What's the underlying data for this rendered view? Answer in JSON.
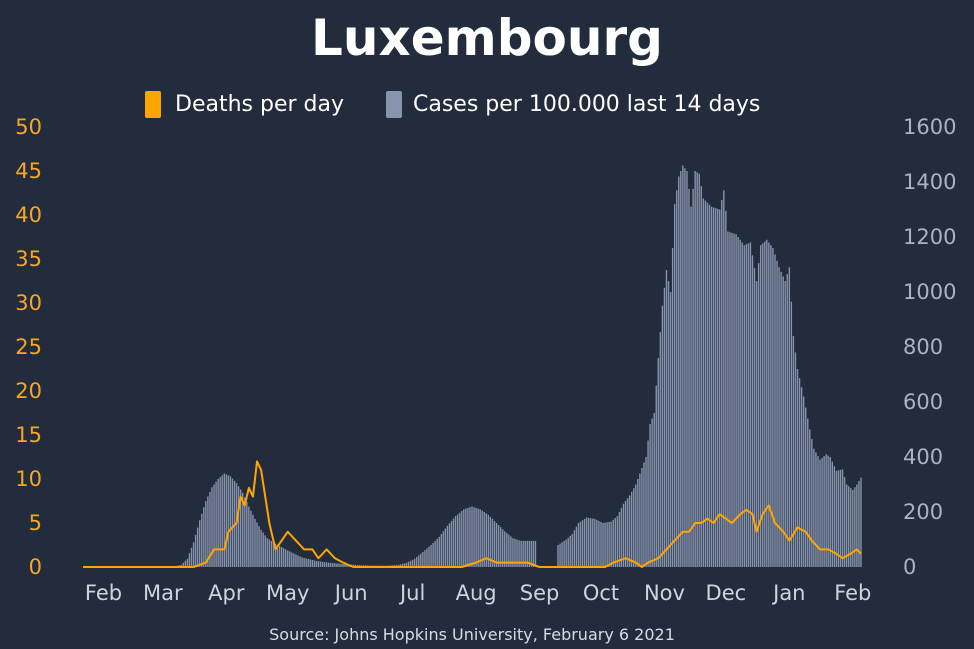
{
  "chart_data": {
    "type": "bar+line",
    "title": "Luxembourg",
    "source": "Source: Johns Hopkins University, February 6 2021",
    "legend": [
      {
        "label": "Deaths per day",
        "color": "#ffa500",
        "axis": "left"
      },
      {
        "label": "Cases per 100.000 last 14 days",
        "color": "#8794ad",
        "axis": "right"
      }
    ],
    "legend_position": "top-center",
    "x_tick_labels": [
      "Feb",
      "Mar",
      "Apr",
      "May",
      "Jun",
      "Jul",
      "Aug",
      "Sep",
      "Oct",
      "Nov",
      "Dec",
      "Jan",
      "Feb"
    ],
    "y_left": {
      "ticks": [
        "0",
        "5",
        "10",
        "15",
        "20",
        "25",
        "30",
        "35",
        "40",
        "45",
        "50"
      ],
      "range": [
        0,
        50
      ]
    },
    "y_right": {
      "ticks": [
        "0",
        "200",
        "400",
        "600",
        "800",
        "1000",
        "1200",
        "1400",
        "1600"
      ],
      "range": [
        0,
        1600
      ]
    },
    "x_range": [
      "2020-01-22",
      "2021-02-05"
    ],
    "series": [
      {
        "name": "Cases per 100.000 last 14 days",
        "kind": "bar",
        "axis": "right",
        "points": [
          [
            "2020-03-05",
            0
          ],
          [
            "2020-03-10",
            8
          ],
          [
            "2020-03-13",
            30
          ],
          [
            "2020-03-16",
            90
          ],
          [
            "2020-03-19",
            170
          ],
          [
            "2020-03-22",
            240
          ],
          [
            "2020-03-25",
            290
          ],
          [
            "2020-03-28",
            320
          ],
          [
            "2020-03-31",
            340
          ],
          [
            "2020-04-03",
            330
          ],
          [
            "2020-04-06",
            305
          ],
          [
            "2020-04-09",
            270
          ],
          [
            "2020-04-12",
            220
          ],
          [
            "2020-04-15",
            175
          ],
          [
            "2020-04-18",
            135
          ],
          [
            "2020-04-21",
            105
          ],
          [
            "2020-04-25",
            85
          ],
          [
            "2020-05-01",
            60
          ],
          [
            "2020-05-08",
            35
          ],
          [
            "2020-05-15",
            22
          ],
          [
            "2020-05-22",
            15
          ],
          [
            "2020-05-29",
            10
          ],
          [
            "2020-06-05",
            7
          ],
          [
            "2020-06-12",
            5
          ],
          [
            "2020-06-19",
            5
          ],
          [
            "2020-06-24",
            8
          ],
          [
            "2020-06-28",
            15
          ],
          [
            "2020-07-02",
            30
          ],
          [
            "2020-07-06",
            55
          ],
          [
            "2020-07-10",
            80
          ],
          [
            "2020-07-14",
            110
          ],
          [
            "2020-07-18",
            150
          ],
          [
            "2020-07-22",
            185
          ],
          [
            "2020-07-26",
            210
          ],
          [
            "2020-07-30",
            220
          ],
          [
            "2020-08-03",
            210
          ],
          [
            "2020-08-07",
            190
          ],
          [
            "2020-08-11",
            160
          ],
          [
            "2020-08-15",
            130
          ],
          [
            "2020-08-19",
            105
          ],
          [
            "2020-08-23",
            95
          ],
          [
            "2020-08-27",
            95
          ],
          [
            "2020-08-30",
            95
          ],
          [
            "2020-09-10",
            80
          ],
          [
            "2020-09-14",
            100
          ],
          [
            "2020-09-17",
            120
          ],
          [
            "2020-09-20",
            160
          ],
          [
            "2020-09-24",
            180
          ],
          [
            "2020-09-28",
            175
          ],
          [
            "2020-10-02",
            160
          ],
          [
            "2020-10-06",
            165
          ],
          [
            "2020-10-09",
            185
          ],
          [
            "2020-10-12",
            230
          ],
          [
            "2020-10-15",
            260
          ],
          [
            "2020-10-18",
            300
          ],
          [
            "2020-10-21",
            360
          ],
          [
            "2020-10-23",
            400
          ],
          [
            "2020-10-25",
            520
          ],
          [
            "2020-10-27",
            560
          ],
          [
            "2020-10-29",
            760
          ],
          [
            "2020-10-31",
            950
          ],
          [
            "2020-11-02",
            1080
          ],
          [
            "2020-11-04",
            1000
          ],
          [
            "2020-11-06",
            1320
          ],
          [
            "2020-11-08",
            1420
          ],
          [
            "2020-11-10",
            1460
          ],
          [
            "2020-11-12",
            1440
          ],
          [
            "2020-11-14",
            1310
          ],
          [
            "2020-11-16",
            1440
          ],
          [
            "2020-11-18",
            1430
          ],
          [
            "2020-11-20",
            1340
          ],
          [
            "2020-11-24",
            1310
          ],
          [
            "2020-11-28",
            1300
          ],
          [
            "2020-11-30",
            1370
          ],
          [
            "2020-12-02",
            1220
          ],
          [
            "2020-12-06",
            1210
          ],
          [
            "2020-12-10",
            1170
          ],
          [
            "2020-12-13",
            1180
          ],
          [
            "2020-12-16",
            1040
          ],
          [
            "2020-12-18",
            1170
          ],
          [
            "2020-12-21",
            1190
          ],
          [
            "2020-12-24",
            1160
          ],
          [
            "2020-12-27",
            1090
          ],
          [
            "2020-12-30",
            1040
          ],
          [
            "2021-01-01",
            1090
          ],
          [
            "2021-01-03",
            840
          ],
          [
            "2021-01-05",
            720
          ],
          [
            "2021-01-08",
            620
          ],
          [
            "2021-01-11",
            500
          ],
          [
            "2021-01-13",
            430
          ],
          [
            "2021-01-16",
            390
          ],
          [
            "2021-01-19",
            410
          ],
          [
            "2021-01-21",
            400
          ],
          [
            "2021-01-24",
            350
          ],
          [
            "2021-01-27",
            355
          ],
          [
            "2021-01-29",
            300
          ],
          [
            "2021-02-01",
            280
          ],
          [
            "2021-02-03",
            300
          ],
          [
            "2021-02-05",
            325
          ]
        ]
      },
      {
        "name": "Deaths per day",
        "kind": "line",
        "axis": "left",
        "points": [
          [
            "2020-01-22",
            0
          ],
          [
            "2020-03-16",
            0
          ],
          [
            "2020-03-22",
            0.5
          ],
          [
            "2020-03-26",
            2
          ],
          [
            "2020-03-31",
            2
          ],
          [
            "2020-04-02",
            4
          ],
          [
            "2020-04-06",
            5
          ],
          [
            "2020-04-08",
            8
          ],
          [
            "2020-04-10",
            7
          ],
          [
            "2020-04-12",
            9
          ],
          [
            "2020-04-14",
            8
          ],
          [
            "2020-04-16",
            12
          ],
          [
            "2020-04-18",
            11
          ],
          [
            "2020-04-20",
            8
          ],
          [
            "2020-04-22",
            5
          ],
          [
            "2020-04-25",
            2
          ],
          [
            "2020-04-28",
            3
          ],
          [
            "2020-05-01",
            4
          ],
          [
            "2020-05-05",
            3
          ],
          [
            "2020-05-09",
            2
          ],
          [
            "2020-05-13",
            2
          ],
          [
            "2020-05-16",
            1
          ],
          [
            "2020-05-20",
            2
          ],
          [
            "2020-05-24",
            1
          ],
          [
            "2020-05-28",
            0.5
          ],
          [
            "2020-06-02",
            0
          ],
          [
            "2020-07-25",
            0
          ],
          [
            "2020-08-01",
            0.5
          ],
          [
            "2020-08-06",
            1
          ],
          [
            "2020-08-11",
            0.5
          ],
          [
            "2020-08-18",
            0.5
          ],
          [
            "2020-08-26",
            0.5
          ],
          [
            "2020-09-01",
            0
          ],
          [
            "2020-10-03",
            0
          ],
          [
            "2020-10-07",
            0.5
          ],
          [
            "2020-10-13",
            1
          ],
          [
            "2020-10-18",
            0.5
          ],
          [
            "2020-10-21",
            0
          ],
          [
            "2020-10-24",
            0.5
          ],
          [
            "2020-10-29",
            1
          ],
          [
            "2020-11-02",
            2
          ],
          [
            "2020-11-06",
            3
          ],
          [
            "2020-11-10",
            4
          ],
          [
            "2020-11-13",
            4
          ],
          [
            "2020-11-16",
            5
          ],
          [
            "2020-11-19",
            5
          ],
          [
            "2020-11-22",
            5.5
          ],
          [
            "2020-11-25",
            5
          ],
          [
            "2020-11-28",
            6
          ],
          [
            "2020-12-01",
            5.5
          ],
          [
            "2020-12-04",
            5
          ],
          [
            "2020-12-08",
            6
          ],
          [
            "2020-12-11",
            6.5
          ],
          [
            "2020-12-14",
            6
          ],
          [
            "2020-12-16",
            4
          ],
          [
            "2020-12-19",
            6
          ],
          [
            "2020-12-22",
            7
          ],
          [
            "2020-12-25",
            5
          ],
          [
            "2020-12-29",
            4
          ],
          [
            "2021-01-01",
            3
          ],
          [
            "2021-01-05",
            4.5
          ],
          [
            "2021-01-09",
            4
          ],
          [
            "2021-01-12",
            3
          ],
          [
            "2021-01-16",
            2
          ],
          [
            "2021-01-20",
            2
          ],
          [
            "2021-01-24",
            1.5
          ],
          [
            "2021-01-27",
            1
          ],
          [
            "2021-01-31",
            1.5
          ],
          [
            "2021-02-03",
            2
          ],
          [
            "2021-02-05",
            1.5
          ]
        ]
      }
    ]
  }
}
